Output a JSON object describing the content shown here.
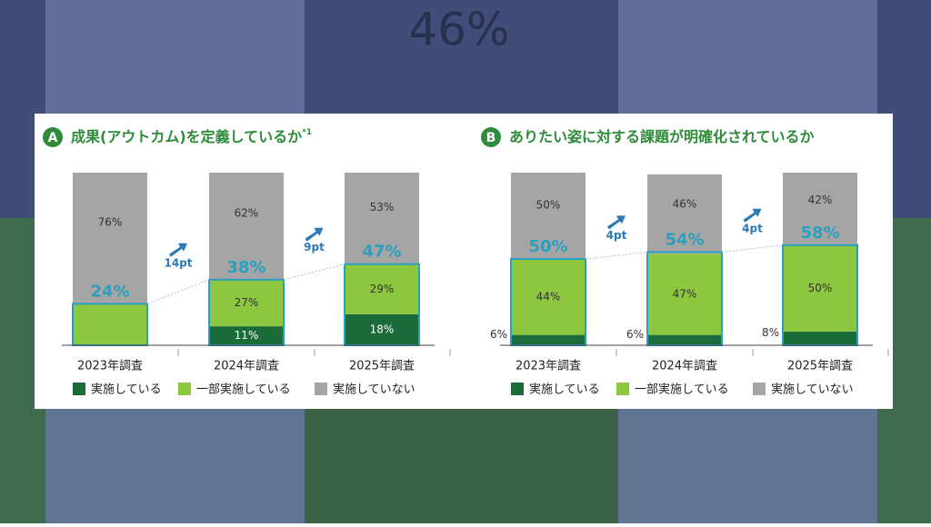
{
  "background_texts": [
    "46%"
  ],
  "chart_data": [
    {
      "type": "bar",
      "stacked": true,
      "badge": "A",
      "title": "成果(アウトカム)を定義しているか",
      "title_note": "*1",
      "categories": [
        "2023年調査",
        "2024年調査",
        "2025年調査"
      ],
      "series": [
        {
          "name": "実施している",
          "color": "#1c6b3a",
          "values": [
            null,
            11,
            18
          ],
          "value_labels": [
            null,
            "11%",
            "18%"
          ]
        },
        {
          "name": "一部実施している",
          "color": "#8dc63f",
          "values": [
            24,
            27,
            29
          ],
          "value_labels": [
            null,
            "27%",
            "29%"
          ]
        },
        {
          "name": "実施していない",
          "color": "#a5a5a5",
          "values": [
            76,
            62,
            53
          ],
          "value_labels": [
            "76%",
            "62%",
            "53%"
          ]
        }
      ],
      "totals": {
        "values": [
          24,
          38,
          47
        ],
        "value_labels": [
          "24%",
          "38%",
          "47%"
        ]
      },
      "changes": {
        "values": [
          14,
          9
        ],
        "value_labels": [
          "14pt",
          "9pt"
        ]
      },
      "ylim": [
        0,
        100
      ]
    },
    {
      "type": "bar",
      "stacked": true,
      "badge": "B",
      "title": "ありたい姿に対する課題が明確化されているか",
      "categories": [
        "2023年調査",
        "2024年調査",
        "2025年調査"
      ],
      "series": [
        {
          "name": "実施している",
          "color": "#1c6b3a",
          "values": [
            6,
            6,
            8
          ],
          "value_labels": [
            "6%",
            "6%",
            "8%"
          ]
        },
        {
          "name": "一部実施している",
          "color": "#8dc63f",
          "values": [
            44,
            47,
            50
          ],
          "value_labels": [
            "44%",
            "47%",
            "50%"
          ]
        },
        {
          "name": "実施していない",
          "color": "#a5a5a5",
          "values": [
            50,
            46,
            42
          ],
          "value_labels": [
            "50%",
            "46%",
            "42%"
          ]
        }
      ],
      "totals": {
        "values": [
          50,
          54,
          58
        ],
        "value_labels": [
          "50%",
          "54%",
          "58%"
        ]
      },
      "changes": {
        "values": [
          4,
          4
        ],
        "value_labels": [
          "4pt",
          "4pt"
        ]
      },
      "ylim": [
        0,
        100
      ]
    }
  ]
}
